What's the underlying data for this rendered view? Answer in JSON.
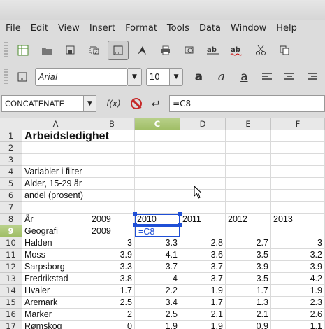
{
  "menubar": {
    "items": [
      "File",
      "Edit",
      "View",
      "Insert",
      "Format",
      "Tools",
      "Data",
      "Window",
      "Help"
    ]
  },
  "formatting": {
    "font_name": "Arial",
    "font_size": "10"
  },
  "formula_bar": {
    "name_box": "CONCATENATE",
    "fx_label": "f(x)",
    "input": "=C8"
  },
  "grid": {
    "columns": [
      "A",
      "B",
      "C",
      "D",
      "E",
      "F"
    ],
    "selected_column": "C",
    "selected_row": "9",
    "rows": [
      {
        "n": "1",
        "A": "Arbeidsledighet"
      },
      {
        "n": "2"
      },
      {
        "n": "3"
      },
      {
        "n": "4",
        "A": "Variabler i filter"
      },
      {
        "n": "5",
        "A": "Alder, 15-29 år"
      },
      {
        "n": "6",
        "A": "andel (prosent)"
      },
      {
        "n": "7"
      },
      {
        "n": "8",
        "A": "År",
        "B": "2009",
        "C": "2010",
        "D": "2011",
        "E": "2012",
        "F": "2013"
      },
      {
        "n": "9",
        "A": "Geografi",
        "B": "2009",
        "C": "=C8"
      },
      {
        "n": "10",
        "A": "Halden",
        "B": "3",
        "C": "3.3",
        "D": "2.8",
        "E": "2.7",
        "F": "3"
      },
      {
        "n": "11",
        "A": "Moss",
        "B": "3.9",
        "C": "4.1",
        "D": "3.6",
        "E": "3.5",
        "F": "3.2"
      },
      {
        "n": "12",
        "A": "Sarpsborg",
        "B": "3.3",
        "C": "3.7",
        "D": "3.7",
        "E": "3.9",
        "F": "3.9"
      },
      {
        "n": "13",
        "A": "Fredrikstad",
        "B": "3.8",
        "C": "4",
        "D": "3.7",
        "E": "3.5",
        "F": "4.2"
      },
      {
        "n": "14",
        "A": "Hvaler",
        "B": "1.7",
        "C": "2.2",
        "D": "1.9",
        "E": "1.7",
        "F": "1.9"
      },
      {
        "n": "15",
        "A": "Aremark",
        "B": "2.5",
        "C": "3.4",
        "D": "1.7",
        "E": "1.3",
        "F": "2.3"
      },
      {
        "n": "16",
        "A": "Marker",
        "B": "2",
        "C": "2.5",
        "D": "2.1",
        "E": "2.1",
        "F": "2.6"
      },
      {
        "n": "17",
        "A": "Rømskog",
        "B": "0",
        "C": "1.9",
        "D": "1.9",
        "E": "0.9",
        "F": "1.1"
      }
    ]
  }
}
